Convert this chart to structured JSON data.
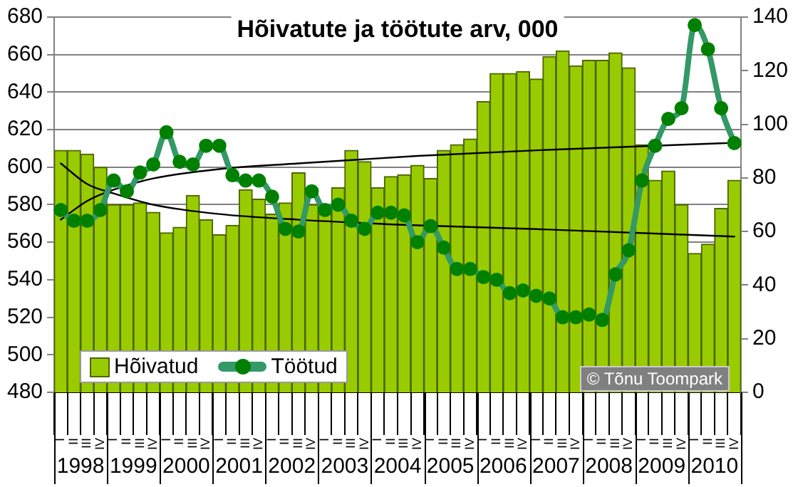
{
  "chart_data": {
    "type": "bar",
    "title": "Hõivatute ja töötute arv, 000",
    "categories": [
      "I",
      "II",
      "III",
      "IV",
      "I",
      "II",
      "III",
      "IV",
      "I",
      "II",
      "III",
      "IV",
      "I",
      "II",
      "III",
      "IV",
      "I",
      "II",
      "III",
      "IV",
      "I",
      "II",
      "III",
      "IV",
      "I",
      "II",
      "III",
      "IV",
      "I",
      "II",
      "III",
      "IV",
      "I",
      "II",
      "III",
      "IV",
      "I",
      "II",
      "III",
      "IV",
      "I",
      "II",
      "III",
      "IV",
      "I",
      "II",
      "III",
      "IV",
      "I",
      "II",
      "III",
      "IV"
    ],
    "series": [
      {
        "name": "Hõivatud",
        "color": "#99cc00",
        "values": [
          609,
          609,
          607,
          600,
          580,
          580,
          581,
          576,
          565,
          568,
          585,
          572,
          564,
          569,
          588,
          583,
          575,
          581,
          597,
          580,
          575,
          589,
          609,
          603,
          589,
          595,
          596,
          601,
          594,
          609,
          612,
          615,
          635,
          650,
          650,
          651,
          647,
          659,
          662,
          654,
          657,
          657,
          661,
          653,
          612,
          593,
          598,
          580,
          554,
          559,
          578,
          593
        ]
      },
      {
        "name": "Töötud",
        "type": "line",
        "axis": "y2",
        "color": "#339966",
        "marker": "circle",
        "values": [
          68,
          64,
          64,
          68,
          79,
          75,
          82,
          85,
          97,
          86,
          85,
          92,
          92,
          81,
          79,
          79,
          73,
          61,
          60,
          75,
          68,
          70,
          64,
          61,
          67,
          67,
          66,
          56,
          62,
          54,
          46,
          46,
          43,
          42,
          37,
          38,
          36,
          35,
          28,
          28,
          29,
          27,
          44,
          53,
          79,
          92,
          102,
          106,
          137,
          128,
          106,
          93
        ]
      },
      {
        "type": "line",
        "color": "#000000",
        "values": [
          602,
          null,
          591,
          null,
          586,
          null,
          null,
          580,
          null,
          null,
          null,
          null,
          575,
          null,
          null,
          null,
          null,
          null,
          572,
          null,
          null,
          null,
          null,
          null,
          null,
          null,
          null,
          569,
          null,
          null,
          null,
          null,
          null,
          null,
          null,
          null,
          567,
          null,
          null,
          null,
          null,
          null,
          null,
          null,
          null,
          null,
          null,
          null,
          null,
          null,
          null,
          563
        ]
      },
      {
        "type": "line",
        "color": "#000000",
        "values": [
          572,
          null,
          582,
          null,
          588,
          null,
          null,
          594,
          null,
          null,
          null,
          null,
          599,
          null,
          null,
          null,
          null,
          null,
          602,
          null,
          null,
          null,
          null,
          null,
          null,
          null,
          null,
          606,
          null,
          null,
          null,
          null,
          null,
          null,
          null,
          null,
          609,
          null,
          null,
          null,
          null,
          null,
          null,
          null,
          null,
          null,
          null,
          null,
          null,
          null,
          null,
          613
        ]
      }
    ],
    "ylim": [
      480,
      680
    ],
    "yticks": [
      480,
      500,
      520,
      540,
      560,
      580,
      600,
      620,
      640,
      660,
      680
    ],
    "y2lim": [
      0,
      140
    ],
    "y2ticks": [
      0,
      20,
      40,
      60,
      80,
      100,
      120,
      140
    ],
    "grid": "y",
    "legend": "bottom left",
    "annotations": [
      "1998",
      "1999",
      "2000",
      "2001",
      "2002",
      "2003",
      "2004",
      "2005",
      "2006",
      "2007",
      "2008",
      "2009",
      "2010",
      "© Tõnu Toompark"
    ]
  }
}
